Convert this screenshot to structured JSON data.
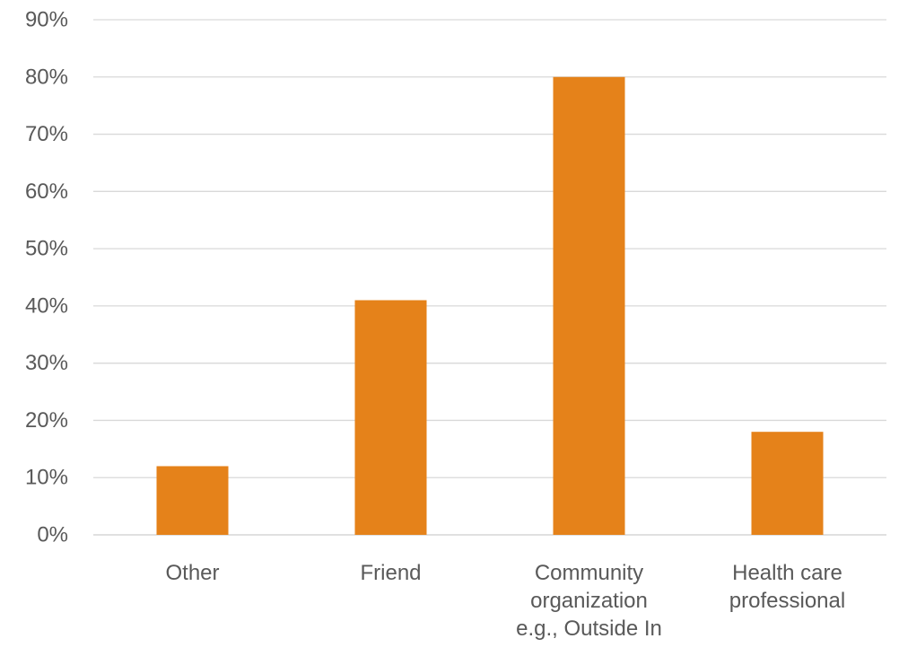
{
  "chart_data": {
    "type": "bar",
    "categories": [
      [
        "Other"
      ],
      [
        "Friend"
      ],
      [
        "Community",
        "organization",
        "e.g., Outside In"
      ],
      [
        "Health care",
        "professional"
      ]
    ],
    "values": [
      12,
      41,
      80,
      18
    ],
    "ylim": [
      0,
      90
    ],
    "y_tick_step": 10,
    "y_tick_format": "percent",
    "y_ticks": [
      "0%",
      "10%",
      "20%",
      "30%",
      "40%",
      "50%",
      "60%",
      "70%",
      "80%",
      "90%"
    ],
    "title": "",
    "xlabel": "",
    "ylabel": "",
    "grid": true,
    "legend": "none",
    "bar_color": "#e5821a"
  }
}
